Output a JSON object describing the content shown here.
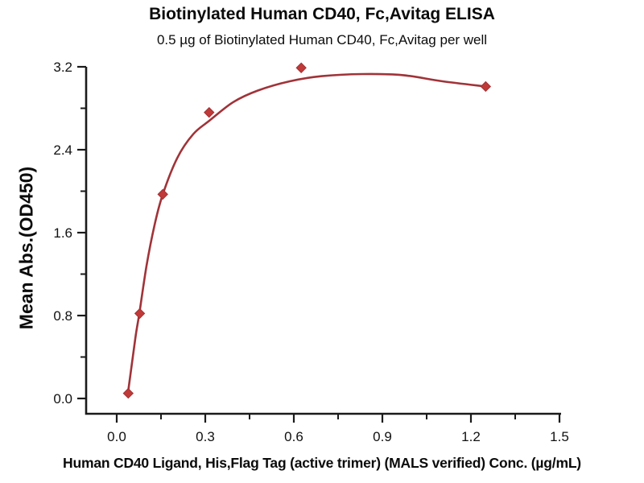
{
  "chart_data": {
    "type": "scatter",
    "title": "Biotinylated Human CD40, Fc,Avitag ELISA",
    "subtitle": "0.5 µg of Biotinylated Human CD40, Fc,Avitag per well",
    "xlabel": "Human CD40 Ligand, His,Flag Tag (active trimer) (MALS verified) Conc. (µg/mL)",
    "ylabel": "Mean Abs.(OD450)",
    "xlim": [
      0,
      1.5
    ],
    "ylim": [
      0,
      3.2
    ],
    "x_major_ticks": [
      0.0,
      0.3,
      0.6,
      0.9,
      1.2,
      1.5
    ],
    "x_minor_ticks": [
      0.15,
      0.45,
      0.75,
      1.05,
      1.35
    ],
    "y_major_ticks": [
      0.0,
      0.8,
      1.6,
      2.4,
      3.2
    ],
    "y_minor_ticks": [
      0.4,
      1.2,
      2.0,
      2.8
    ],
    "points": {
      "x": [
        0.039,
        0.078,
        0.156,
        0.313,
        0.625,
        1.25
      ],
      "y": [
        0.05,
        0.82,
        1.97,
        2.76,
        3.19,
        3.01
      ]
    },
    "fit_curve": {
      "x": [
        0.038,
        0.063,
        0.076,
        0.101,
        0.128,
        0.155,
        0.205,
        0.259,
        0.314,
        0.395,
        0.477,
        0.586,
        0.695,
        0.832,
        0.968,
        1.104,
        1.252
      ],
      "y": [
        0.05,
        0.58,
        0.81,
        1.28,
        1.67,
        1.96,
        2.32,
        2.55,
        2.68,
        2.86,
        2.97,
        3.06,
        3.11,
        3.13,
        3.12,
        3.06,
        3.01
      ]
    },
    "colors": {
      "curve": "#a03338",
      "marker_fill": "#bf3a38",
      "marker_edge": "#a33134",
      "axis": "#1a1a1a",
      "text": "#111111"
    },
    "legend": null,
    "grid": "off"
  }
}
